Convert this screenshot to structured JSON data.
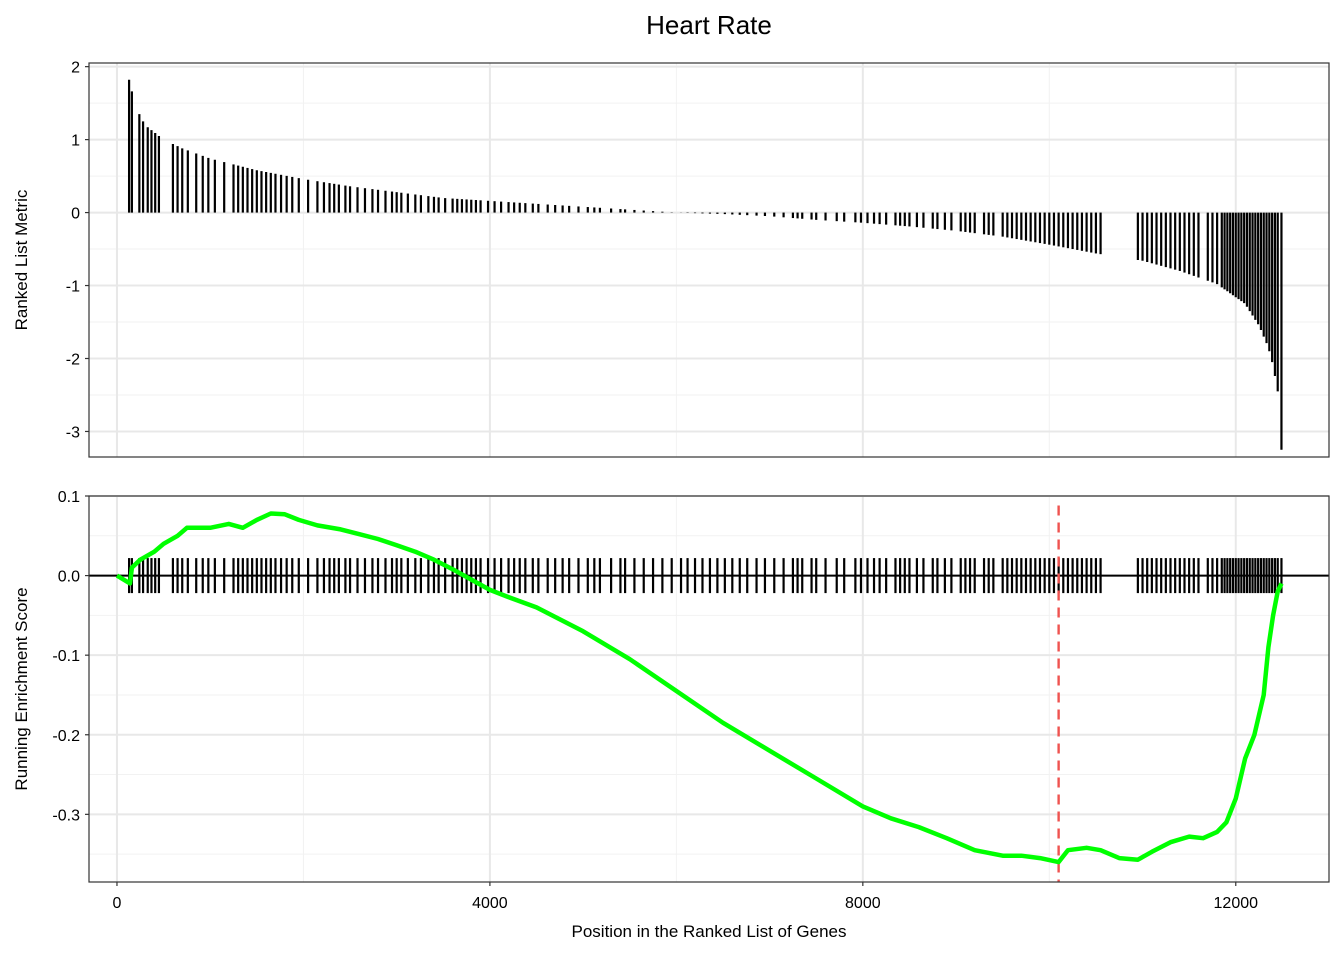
{
  "chart_data": [
    {
      "type": "bar",
      "panel": "ranked-list-metric",
      "title": "Heart Rate",
      "xlabel": "",
      "ylabel": "Ranked List Metric",
      "xlim": [
        -300,
        13000
      ],
      "ylim": [
        -3.35,
        2.05
      ],
      "x_ticks": [
        0,
        4000,
        8000,
        12000
      ],
      "y_ticks": [
        2,
        1,
        0,
        -1,
        -2,
        -3
      ],
      "y_tick_labels": [
        "2",
        "1",
        "0",
        "-1",
        "-2",
        "-3"
      ],
      "grid": true,
      "color": "#000000",
      "metric_profile": [
        [
          130,
          1.82
        ],
        [
          200,
          1.45
        ],
        [
          300,
          1.2
        ],
        [
          500,
          1.0
        ],
        [
          700,
          0.88
        ],
        [
          1000,
          0.74
        ],
        [
          1500,
          0.58
        ],
        [
          2000,
          0.46
        ],
        [
          2500,
          0.36
        ],
        [
          3000,
          0.28
        ],
        [
          3500,
          0.2
        ],
        [
          4000,
          0.16
        ],
        [
          4500,
          0.12
        ],
        [
          5000,
          0.08
        ],
        [
          5500,
          0.04
        ],
        [
          6000,
          0.0
        ],
        [
          6500,
          -0.02
        ],
        [
          7000,
          -0.05
        ],
        [
          7500,
          -0.1
        ],
        [
          8000,
          -0.14
        ],
        [
          8500,
          -0.19
        ],
        [
          9000,
          -0.25
        ],
        [
          9500,
          -0.33
        ],
        [
          10000,
          -0.44
        ],
        [
          10500,
          -0.56
        ],
        [
          11000,
          -0.66
        ],
        [
          11400,
          -0.8
        ],
        [
          11800,
          -0.98
        ],
        [
          12100,
          -1.25
        ],
        [
          12250,
          -1.55
        ],
        [
          12350,
          -1.85
        ],
        [
          12400,
          -2.1
        ],
        [
          12450,
          -2.45
        ],
        [
          12490,
          -3.25
        ]
      ],
      "hits": [
        130,
        160,
        240,
        280,
        330,
        370,
        410,
        450,
        600,
        650,
        700,
        760,
        850,
        920,
        980,
        1050,
        1150,
        1250,
        1300,
        1350,
        1400,
        1450,
        1500,
        1550,
        1600,
        1650,
        1700,
        1760,
        1820,
        1880,
        1950,
        2050,
        2150,
        2220,
        2280,
        2330,
        2380,
        2450,
        2500,
        2580,
        2660,
        2740,
        2800,
        2880,
        2950,
        3000,
        3050,
        3120,
        3200,
        3260,
        3340,
        3400,
        3450,
        3520,
        3600,
        3650,
        3700,
        3750,
        3800,
        3850,
        3900,
        3980,
        4050,
        4120,
        4200,
        4260,
        4320,
        4380,
        4460,
        4520,
        4620,
        4700,
        4780,
        4850,
        4950,
        5050,
        5120,
        5180,
        5300,
        5400,
        5450,
        5550,
        5650,
        5750,
        5850,
        5950,
        6050,
        6120,
        6200,
        6280,
        6360,
        6440,
        6520,
        6600,
        6680,
        6760,
        6860,
        6950,
        7050,
        7150,
        7250,
        7300,
        7350,
        7450,
        7500,
        7600,
        7720,
        7800,
        7920,
        7980,
        8050,
        8120,
        8180,
        8250,
        8350,
        8400,
        8450,
        8500,
        8580,
        8650,
        8750,
        8800,
        8880,
        8950,
        9050,
        9100,
        9150,
        9200,
        9300,
        9350,
        9400,
        9500,
        9550,
        9600,
        9650,
        9700,
        9750,
        9800,
        9850,
        9900,
        9950,
        10000,
        10050,
        10100,
        10150,
        10200,
        10250,
        10300,
        10350,
        10400,
        10450,
        10500,
        10550,
        10950,
        11000,
        11050,
        11100,
        11150,
        11200,
        11250,
        11300,
        11350,
        11400,
        11450,
        11500,
        11550,
        11600,
        11700,
        11750,
        11800,
        11850,
        11880,
        11910,
        11940,
        11970,
        12000,
        12030,
        12060,
        12090,
        12120,
        12150,
        12180,
        12210,
        12240,
        12270,
        12300,
        12330,
        12360,
        12390,
        12420,
        12450,
        12490
      ]
    },
    {
      "type": "line",
      "panel": "running-enrichment-score",
      "xlabel": "Position in the Ranked List of Genes",
      "ylabel": "Running Enrichment Score",
      "xlim": [
        -300,
        13000
      ],
      "ylim": [
        -0.385,
        0.1
      ],
      "x_ticks": [
        0,
        4000,
        8000,
        12000
      ],
      "x_tick_labels": [
        "0",
        "4000",
        "8000",
        "12000"
      ],
      "y_ticks": [
        0.1,
        0.0,
        -0.1,
        -0.2,
        -0.3
      ],
      "y_tick_labels": [
        "0.1",
        "0.0",
        "-0.1",
        "-0.2",
        "-0.3"
      ],
      "grid": true,
      "series": [
        {
          "color": "#00ff00",
          "x": [
            0,
            140,
            160,
            250,
            400,
            500,
            650,
            750,
            900,
            1000,
            1200,
            1350,
            1500,
            1650,
            1800,
            1950,
            2150,
            2400,
            2600,
            2800,
            3000,
            3200,
            3400,
            3600,
            3800,
            4000,
            4200,
            4500,
            5000,
            5500,
            6000,
            6500,
            7000,
            7500,
            8000,
            8300,
            8600,
            8900,
            9200,
            9500,
            9700,
            9900,
            10100,
            10200,
            10400,
            10550,
            10750,
            10950,
            11100,
            11300,
            11500,
            11650,
            11800,
            11900,
            12000,
            12100,
            12200,
            12300,
            12350,
            12400,
            12450,
            12490
          ],
          "y": [
            0.0,
            -0.01,
            0.01,
            0.02,
            0.03,
            0.04,
            0.05,
            0.06,
            0.06,
            0.06,
            0.065,
            0.06,
            0.07,
            0.078,
            0.077,
            0.07,
            0.063,
            0.058,
            0.052,
            0.046,
            0.038,
            0.03,
            0.02,
            0.008,
            -0.005,
            -0.018,
            -0.027,
            -0.04,
            -0.07,
            -0.105,
            -0.145,
            -0.185,
            -0.22,
            -0.255,
            -0.29,
            -0.305,
            -0.316,
            -0.33,
            -0.345,
            -0.352,
            -0.352,
            -0.355,
            -0.36,
            -0.345,
            -0.342,
            -0.345,
            -0.355,
            -0.357,
            -0.347,
            -0.335,
            -0.328,
            -0.33,
            -0.322,
            -0.31,
            -0.28,
            -0.23,
            -0.2,
            -0.15,
            -0.09,
            -0.05,
            -0.02,
            -0.01
          ]
        }
      ],
      "reference_line": {
        "y": 0.0,
        "color": "#000000"
      },
      "es_marker": {
        "x": 10100,
        "color": "#ef5350",
        "style": "dashed"
      }
    }
  ]
}
